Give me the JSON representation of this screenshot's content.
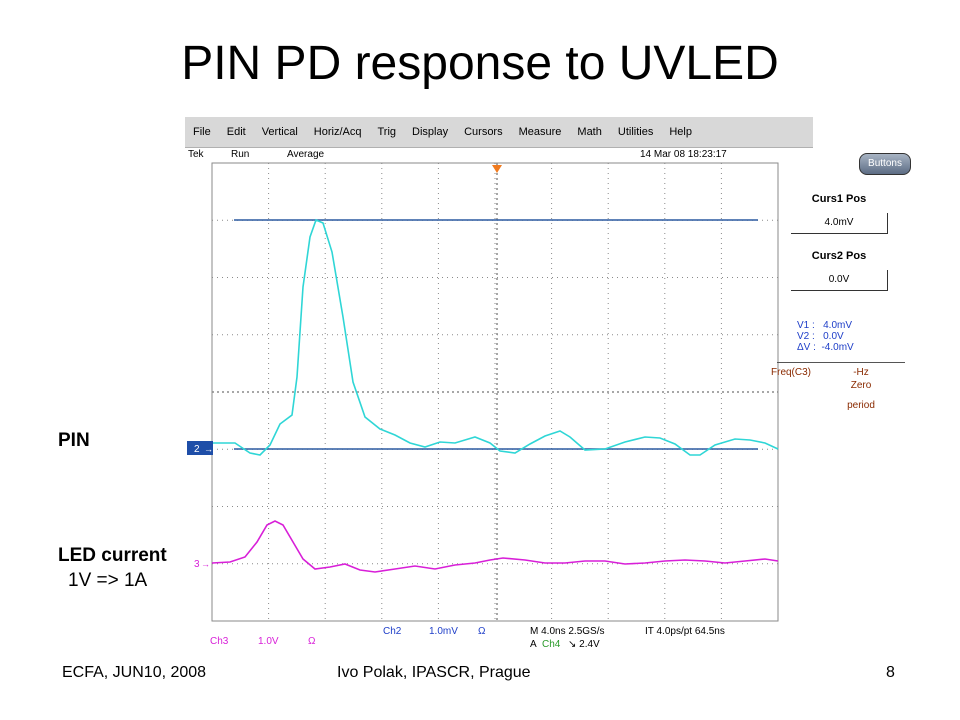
{
  "slide": {
    "title": "PIN PD response to UVLED",
    "pin_label": "PIN",
    "led_label": "LED current",
    "led_scale": "1V => 1A",
    "footer_left": "ECFA, JUN10, 2008",
    "footer_center": "Ivo Polak, IPASCR, Prague",
    "page_number": "8"
  },
  "scope": {
    "menu": [
      "File",
      "Edit",
      "Vertical",
      "Horiz/Acq",
      "Trig",
      "Display",
      "Cursors",
      "Measure",
      "Math",
      "Utilities",
      "Help"
    ],
    "status": {
      "brand": "Tek",
      "state": "Run",
      "mode": "Average",
      "timestamp": "14 Mar 08 18:23:17"
    },
    "buttons_label": "Buttons",
    "curs1_title": "Curs1 Pos",
    "curs1_value": "4.0mV",
    "curs2_title": "Curs2 Pos",
    "curs2_value": "0.0V",
    "readout": "V1 :   4.0mV\nV2 :   0.0V\nΔV :  -4.0mV",
    "freq_label": "Freq(C3)",
    "freq_value": "-Hz",
    "freq_note1": "Zero",
    "freq_note2": "period",
    "ch2_marker": "2",
    "ch3_marker": "3",
    "bottom": {
      "ch3": "Ch3",
      "ch3_scale": "1.0V",
      "ch3_ohm": "Ω",
      "ch2": "Ch2",
      "ch2_scale": "1.0mV",
      "ch2_ohm": "Ω",
      "horiz": "M 4.0ns 2.5GS/s",
      "horiz_it": "IT 4.0ps/pt 64.5ns",
      "trig_a": "A",
      "trig_ch": "Ch4",
      "trig_level": "↘ 2.4V"
    },
    "colors": {
      "pin_trace": "#2fd6d6",
      "led_trace": "#d81fd8",
      "cursor": "#2b5aa0",
      "grid": "#8a8a8a"
    }
  }
}
